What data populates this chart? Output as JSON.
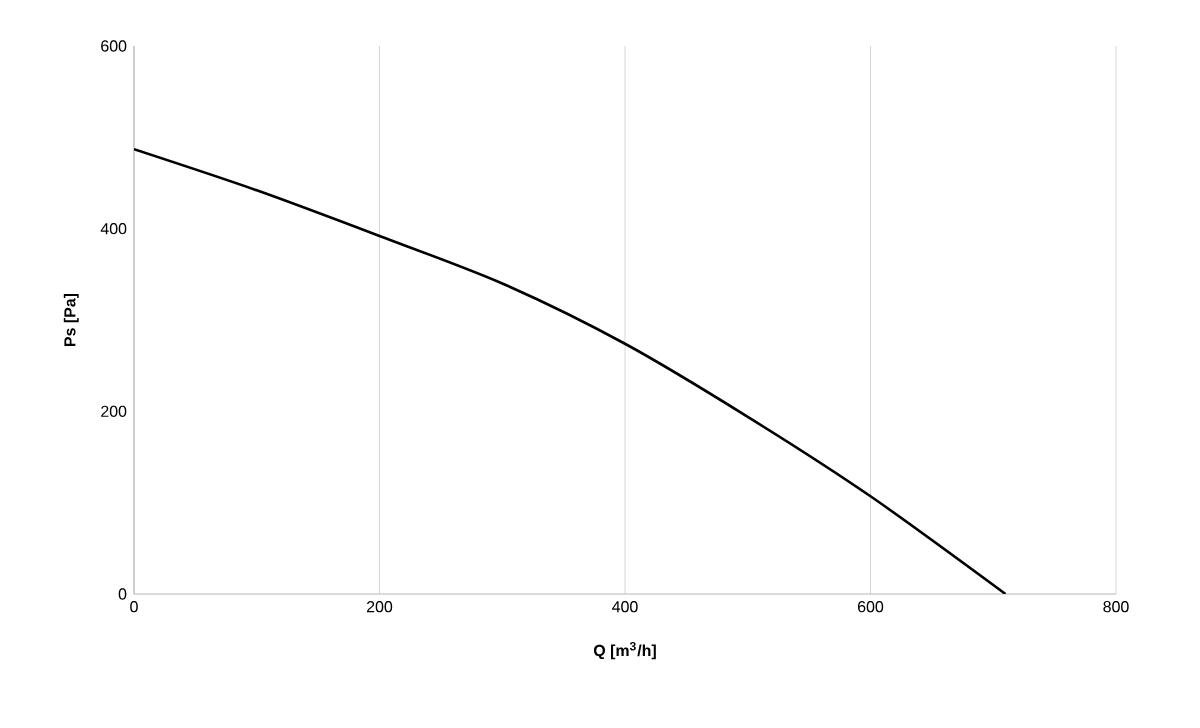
{
  "chart_data": {
    "type": "line",
    "xlabel": "Q [m$^{3}$/h]",
    "ylabel": "Ps [Pa]",
    "series": [
      {
        "color": "#000000",
        "x": [
          0,
          100,
          200,
          300,
          400,
          500,
          600,
          710
        ],
        "values": [
          487,
          442,
          392,
          340,
          274,
          194,
          107,
          0
        ]
      }
    ],
    "xlim": [
      0,
      800
    ],
    "ylim": [
      0,
      600
    ],
    "xticks": [
      0,
      200,
      400,
      600,
      800
    ],
    "yticks": [
      0,
      200,
      400,
      600
    ],
    "grid": "x",
    "marker": "none",
    "line_style": "solid"
  }
}
